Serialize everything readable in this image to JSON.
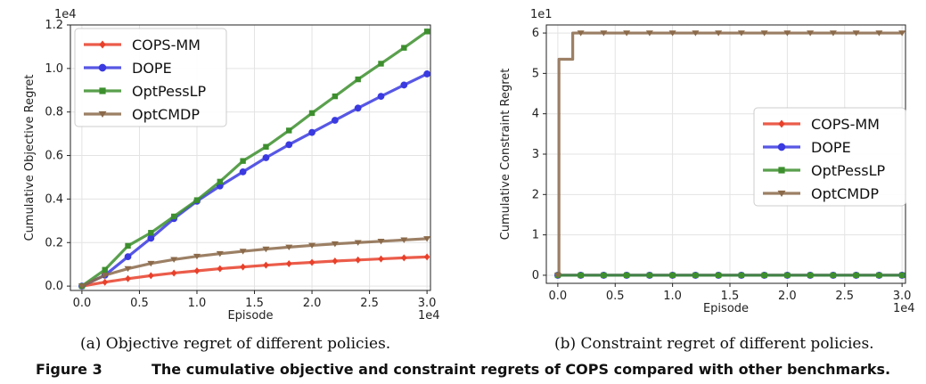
{
  "chart_data": [
    {
      "type": "line",
      "title": "",
      "xlabel": "Episode",
      "ylabel": "Cumulative Objective Regret",
      "x_multiplier": "1e4",
      "y_multiplier": "1e4",
      "xlim": [
        -0.1,
        3.03
      ],
      "ylim": [
        -0.02,
        1.2
      ],
      "x_ticks": [
        0.0,
        0.5,
        1.0,
        1.5,
        2.0,
        2.5,
        3.0
      ],
      "x_tick_labels": [
        "0.0",
        "0.5",
        "1.0",
        "1.5",
        "2.0",
        "2.5",
        "3.0"
      ],
      "y_ticks": [
        0.0,
        0.2,
        0.4,
        0.6,
        0.8,
        1.0,
        1.2
      ],
      "y_tick_labels": [
        "0.0",
        "0.2",
        "0.4",
        "0.6",
        "0.8",
        "1.0",
        "1.2"
      ],
      "grid": true,
      "legend_position": "top-left",
      "x": [
        0.0,
        0.2,
        0.4,
        0.6,
        0.8,
        1.0,
        1.2,
        1.4,
        1.6,
        1.8,
        2.0,
        2.2,
        2.4,
        2.6,
        2.8,
        3.0
      ],
      "series": [
        {
          "name": "COPS-MM",
          "color": "#e8402a",
          "marker": "diamond",
          "values": [
            0.0,
            0.018,
            0.034,
            0.048,
            0.06,
            0.07,
            0.08,
            0.088,
            0.096,
            0.103,
            0.109,
            0.115,
            0.12,
            0.125,
            0.13,
            0.134
          ]
        },
        {
          "name": "DOPE",
          "color": "#3a3ae0",
          "marker": "circle",
          "values": [
            0.0,
            0.05,
            0.135,
            0.22,
            0.31,
            0.39,
            0.46,
            0.525,
            0.59,
            0.65,
            0.706,
            0.762,
            0.818,
            0.872,
            0.924,
            0.975
          ]
        },
        {
          "name": "OptPessLP",
          "color": "#3d8f2e",
          "marker": "square",
          "values": [
            0.0,
            0.075,
            0.185,
            0.245,
            0.32,
            0.395,
            0.48,
            0.575,
            0.64,
            0.715,
            0.795,
            0.872,
            0.95,
            1.022,
            1.095,
            1.17
          ]
        },
        {
          "name": "OptCMDP",
          "color": "#8b6a4a",
          "marker": "triangle-down",
          "values": [
            0.0,
            0.05,
            0.08,
            0.104,
            0.122,
            0.137,
            0.149,
            0.16,
            0.17,
            0.179,
            0.187,
            0.194,
            0.2,
            0.206,
            0.212,
            0.218
          ]
        }
      ]
    },
    {
      "type": "line",
      "title": "",
      "xlabel": "Episode",
      "ylabel": "Cumulative Constraint Regret",
      "x_multiplier": "1e4",
      "y_multiplier": "1e1",
      "xlim": [
        -0.1,
        3.03
      ],
      "ylim": [
        -0.2,
        6.2
      ],
      "x_ticks": [
        0.0,
        0.5,
        1.0,
        1.5,
        2.0,
        2.5,
        3.0
      ],
      "x_tick_labels": [
        "0.0",
        "0.5",
        "1.0",
        "1.5",
        "2.0",
        "2.5",
        "3.0"
      ],
      "y_ticks": [
        0,
        1,
        2,
        3,
        4,
        5,
        6
      ],
      "y_tick_labels": [
        "0",
        "1",
        "2",
        "3",
        "4",
        "5",
        "6"
      ],
      "grid": true,
      "legend_position": "center-right",
      "x": [
        0.0,
        0.2,
        0.4,
        0.6,
        0.8,
        1.0,
        1.2,
        1.4,
        1.6,
        1.8,
        2.0,
        2.2,
        2.4,
        2.6,
        2.8,
        3.0
      ],
      "marker_x": [
        0.0,
        0.2,
        0.4,
        0.6,
        0.8,
        1.0,
        1.2,
        1.4,
        1.6,
        1.8,
        2.0,
        2.2,
        2.4,
        2.6,
        2.8,
        3.0
      ],
      "series": [
        {
          "name": "COPS-MM",
          "color": "#e8402a",
          "marker": "diamond",
          "values": [
            0,
            0,
            0,
            0,
            0,
            0,
            0,
            0,
            0,
            0,
            0,
            0,
            0,
            0,
            0,
            0
          ]
        },
        {
          "name": "DOPE",
          "color": "#3a3ae0",
          "marker": "circle",
          "values": [
            0,
            0,
            0,
            0,
            0,
            0,
            0,
            0,
            0,
            0,
            0,
            0,
            0,
            0,
            0,
            0
          ]
        },
        {
          "name": "OptPessLP",
          "color": "#3d8f2e",
          "marker": "square",
          "values": [
            0,
            0,
            0,
            0,
            0,
            0,
            0,
            0,
            0,
            0,
            0,
            0,
            0,
            0,
            0,
            0
          ]
        },
        {
          "name": "OptCMDP",
          "color": "#8b6a4a",
          "marker": "triangle-down",
          "step_points": [
            [
              0.0,
              0.0
            ],
            [
              0.01,
              0.0
            ],
            [
              0.01,
              5.35
            ],
            [
              0.13,
              5.35
            ],
            [
              0.13,
              6.0
            ],
            [
              3.0,
              6.0
            ]
          ],
          "values": [
            0,
            6,
            6,
            6,
            6,
            6,
            6,
            6,
            6,
            6,
            6,
            6,
            6,
            6,
            6,
            6
          ]
        }
      ]
    }
  ],
  "captions": {
    "left": "(a) Objective regret of different policies.",
    "right": "(b) Constraint regret of different policies.",
    "figure_label": "Figure 3",
    "figure_text": "The cumulative objective and constraint regrets of COPS compared with other benchmarks."
  }
}
